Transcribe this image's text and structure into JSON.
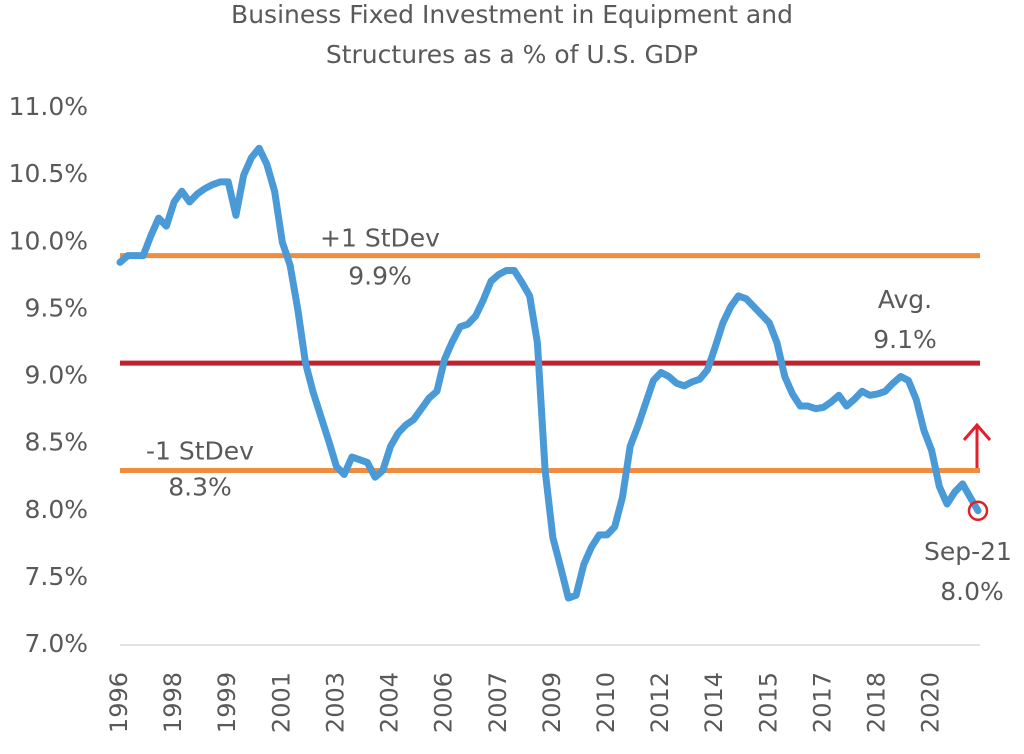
{
  "chart_data": {
    "type": "line",
    "title": [
      "Business Fixed Investment in Equipment and",
      "Structures as a % of U.S. GDP"
    ],
    "categories": [
      "1996",
      null,
      null,
      null,
      null,
      null,
      null,
      "1998",
      null,
      null,
      null,
      null,
      null,
      null,
      "1999",
      null,
      null,
      null,
      null,
      null,
      null,
      "2001",
      null,
      null,
      null,
      null,
      null,
      null,
      "2003",
      null,
      null,
      null,
      null,
      null,
      null,
      "2004",
      null,
      null,
      null,
      null,
      null,
      null,
      "2006",
      null,
      null,
      null,
      null,
      null,
      null,
      "2007",
      null,
      null,
      null,
      null,
      null,
      null,
      "2009",
      null,
      null,
      null,
      null,
      null,
      null,
      "2010",
      null,
      null,
      null,
      null,
      null,
      null,
      "2012",
      null,
      null,
      null,
      null,
      null,
      null,
      "2014",
      null,
      null,
      null,
      null,
      null,
      null,
      "2015",
      null,
      null,
      null,
      null,
      null,
      null,
      "2017",
      null,
      null,
      null,
      null,
      null,
      null,
      "2018",
      null,
      null,
      null,
      null,
      null,
      null,
      "2020",
      null,
      null,
      null,
      null,
      null,
      null
    ],
    "series": [
      {
        "color": "#4a9ad8",
        "values": [
          9.85,
          9.9,
          9.9,
          9.9,
          10.05,
          10.18,
          10.12,
          10.3,
          10.38,
          10.3,
          10.36,
          10.4,
          10.43,
          10.45,
          10.45,
          10.2,
          10.5,
          10.63,
          10.7,
          10.58,
          10.38,
          10.0,
          9.83,
          9.5,
          9.1,
          8.88,
          8.7,
          8.52,
          8.33,
          8.27,
          8.4,
          8.38,
          8.36,
          8.25,
          8.3,
          8.48,
          8.58,
          8.64,
          8.68,
          8.76,
          8.84,
          8.89,
          9.13,
          9.26,
          9.37,
          9.39,
          9.45,
          9.57,
          9.71,
          9.76,
          9.79,
          9.79,
          9.7,
          9.6,
          9.25,
          8.3,
          7.8,
          7.58,
          7.35,
          7.37,
          7.6,
          7.73,
          7.82,
          7.82,
          7.88,
          8.1,
          8.48,
          8.63,
          8.8,
          8.97,
          9.03,
          9.0,
          8.95,
          8.93,
          8.96,
          8.98,
          9.05,
          9.22,
          9.4,
          9.52,
          9.6,
          9.58,
          9.52,
          9.46,
          9.4,
          9.25,
          9.0,
          8.87,
          8.78,
          8.78,
          8.76,
          8.77,
          8.81,
          8.86,
          8.78,
          8.83,
          8.89,
          8.86,
          8.87,
          8.89,
          8.95,
          9.0,
          8.97,
          8.83,
          8.6,
          8.45,
          8.18,
          8.05,
          8.14,
          8.2,
          8.1,
          8.0
        ]
      }
    ],
    "reference_lines": [
      {
        "label": "+1 StDev",
        "value": 9.9,
        "value_label": "9.9%",
        "color": "#f08c3e"
      },
      {
        "label": "Avg.",
        "value": 9.1,
        "value_label": "9.1%",
        "color": "#c0232b"
      },
      {
        "label": "-1 StDev",
        "value": 8.3,
        "value_label": "8.3%",
        "color": "#f08c3e"
      }
    ],
    "annotation": {
      "label": "Sep-21",
      "value_label": "8.0%",
      "color": "#e0202a"
    },
    "ylim": [
      7,
      11
    ],
    "yticks": [
      {
        "value": 7,
        "label": "7.0%"
      },
      {
        "value": 7.5,
        "label": "7.5%"
      },
      {
        "value": 8,
        "label": "8.0%"
      },
      {
        "value": 8.5,
        "label": "8.5%"
      },
      {
        "value": 9,
        "label": "9.0%"
      },
      {
        "value": 9.5,
        "label": "9.5%"
      },
      {
        "value": 10,
        "label": "10.0%"
      },
      {
        "value": 10.5,
        "label": "10.5%"
      },
      {
        "value": 11,
        "label": "11.0%"
      }
    ],
    "grid": false
  }
}
